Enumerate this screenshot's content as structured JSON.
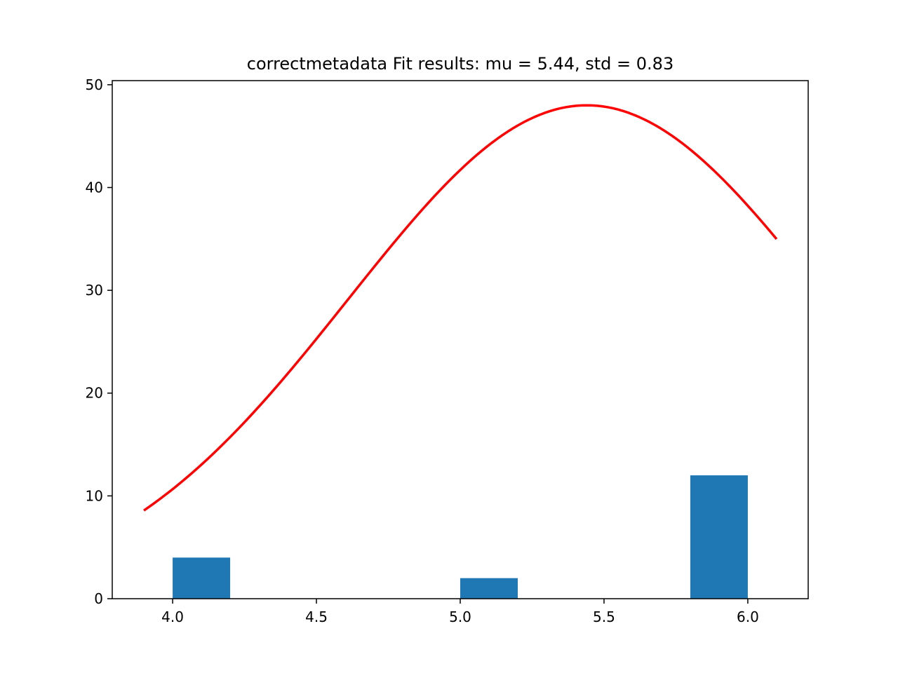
{
  "chart_data": {
    "type": "bar",
    "title": "correctmetadata Fit results: mu = 5.44,  std = 0.83",
    "xlabel": "",
    "ylabel": "",
    "xlim": [
      3.79,
      6.21
    ],
    "ylim": [
      0,
      50.4
    ],
    "x_ticks": [
      4.0,
      4.5,
      5.0,
      5.5,
      6.0
    ],
    "x_tick_labels": [
      "4.0",
      "4.5",
      "5.0",
      "5.5",
      "6.0"
    ],
    "y_ticks": [
      0,
      10,
      20,
      30,
      40,
      50
    ],
    "y_tick_labels": [
      "0",
      "10",
      "20",
      "30",
      "40",
      "50"
    ],
    "grid": false,
    "histogram": {
      "color": "#1f77b4",
      "bins": [
        {
          "x0": 4.0,
          "x1": 4.2,
          "count": 4
        },
        {
          "x0": 4.2,
          "x1": 4.4,
          "count": 0
        },
        {
          "x0": 4.4,
          "x1": 4.6,
          "count": 0
        },
        {
          "x0": 4.6,
          "x1": 4.8,
          "count": 0
        },
        {
          "x0": 4.8,
          "x1": 5.0,
          "count": 0
        },
        {
          "x0": 5.0,
          "x1": 5.2,
          "count": 2
        },
        {
          "x0": 5.2,
          "x1": 5.4,
          "count": 0
        },
        {
          "x0": 5.4,
          "x1": 5.6,
          "count": 0
        },
        {
          "x0": 5.6,
          "x1": 5.8,
          "count": 0
        },
        {
          "x0": 5.8,
          "x1": 6.0,
          "count": 12
        }
      ]
    },
    "fit_curve": {
      "color": "#ff0000",
      "mu": 5.44,
      "std": 0.83,
      "amplitude": 48.0,
      "x_range": [
        3.9,
        6.1
      ]
    }
  }
}
